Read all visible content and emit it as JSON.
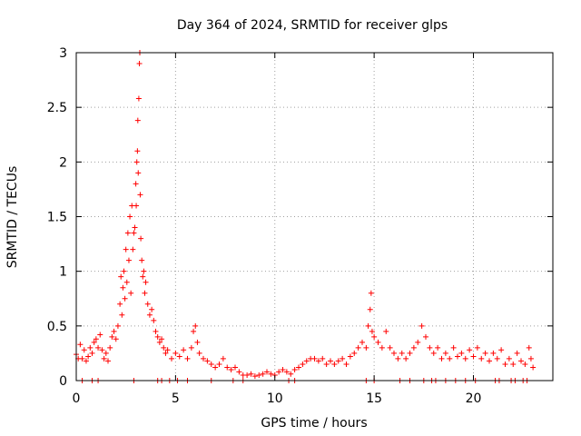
{
  "chart_data": {
    "type": "scatter",
    "title": "Day 364 of 2024, SRMTID for receiver glps",
    "xlabel": "GPS time / hours",
    "ylabel": "SRMTID / TECUs",
    "xlim": [
      0,
      24
    ],
    "ylim": [
      0,
      3
    ],
    "xticks": [
      0,
      5,
      10,
      15,
      20
    ],
    "xtick_labels": [
      "0",
      "5",
      "10",
      "15",
      "20"
    ],
    "yticks": [
      0,
      0.5,
      1,
      1.5,
      2,
      2.5,
      3
    ],
    "ytick_labels": [
      "0",
      "0.5",
      "1",
      "1.5",
      "2",
      "2.5",
      "3"
    ],
    "grid": true,
    "marker": "+",
    "series": [
      {
        "name": "SRMTID",
        "color": "#ff0000",
        "points": [
          [
            0.0,
            0.24
          ],
          [
            0.1,
            0.2
          ],
          [
            0.2,
            0.33
          ],
          [
            0.3,
            0.2
          ],
          [
            0.4,
            0.28
          ],
          [
            0.5,
            0.18
          ],
          [
            0.6,
            0.22
          ],
          [
            0.7,
            0.3
          ],
          [
            0.8,
            0.25
          ],
          [
            0.9,
            0.35
          ],
          [
            1.0,
            0.38
          ],
          [
            1.1,
            0.3
          ],
          [
            1.2,
            0.42
          ],
          [
            1.3,
            0.28
          ],
          [
            1.4,
            0.2
          ],
          [
            1.5,
            0.25
          ],
          [
            1.6,
            0.18
          ],
          [
            1.7,
            0.3
          ],
          [
            1.8,
            0.4
          ],
          [
            1.9,
            0.45
          ],
          [
            2.0,
            0.38
          ],
          [
            2.1,
            0.5
          ],
          [
            2.2,
            0.7
          ],
          [
            2.25,
            0.95
          ],
          [
            2.3,
            0.6
          ],
          [
            2.35,
            0.85
          ],
          [
            2.4,
            1.0
          ],
          [
            2.45,
            0.75
          ],
          [
            2.5,
            1.2
          ],
          [
            2.55,
            0.9
          ],
          [
            2.6,
            1.35
          ],
          [
            2.65,
            1.1
          ],
          [
            2.7,
            1.5
          ],
          [
            2.75,
            0.8
          ],
          [
            2.8,
            1.6
          ],
          [
            2.85,
            1.2
          ],
          [
            2.9,
            1.35
          ],
          [
            2.95,
            1.4
          ],
          [
            3.0,
            1.8
          ],
          [
            3.02,
            1.6
          ],
          [
            3.05,
            2.0
          ],
          [
            3.08,
            2.1
          ],
          [
            3.1,
            2.38
          ],
          [
            3.12,
            1.9
          ],
          [
            3.15,
            2.58
          ],
          [
            3.18,
            2.9
          ],
          [
            3.2,
            3.0
          ],
          [
            3.22,
            1.7
          ],
          [
            3.25,
            1.3
          ],
          [
            3.3,
            1.1
          ],
          [
            3.35,
            0.95
          ],
          [
            3.4,
            1.0
          ],
          [
            3.45,
            0.8
          ],
          [
            3.5,
            0.9
          ],
          [
            3.6,
            0.7
          ],
          [
            3.7,
            0.6
          ],
          [
            3.8,
            0.65
          ],
          [
            3.9,
            0.55
          ],
          [
            4.0,
            0.45
          ],
          [
            4.1,
            0.4
          ],
          [
            4.2,
            0.35
          ],
          [
            4.3,
            0.38
          ],
          [
            4.4,
            0.3
          ],
          [
            4.5,
            0.25
          ],
          [
            4.6,
            0.28
          ],
          [
            4.8,
            0.2
          ],
          [
            5.0,
            0.25
          ],
          [
            5.2,
            0.22
          ],
          [
            5.4,
            0.28
          ],
          [
            5.6,
            0.2
          ],
          [
            5.8,
            0.3
          ],
          [
            5.9,
            0.45
          ],
          [
            6.0,
            0.5
          ],
          [
            6.1,
            0.35
          ],
          [
            6.2,
            0.25
          ],
          [
            6.4,
            0.2
          ],
          [
            6.6,
            0.18
          ],
          [
            6.8,
            0.15
          ],
          [
            7.0,
            0.12
          ],
          [
            7.2,
            0.15
          ],
          [
            7.4,
            0.2
          ],
          [
            7.6,
            0.12
          ],
          [
            7.8,
            0.1
          ],
          [
            8.0,
            0.12
          ],
          [
            8.2,
            0.08
          ],
          [
            8.4,
            0.05
          ],
          [
            8.6,
            0.05
          ],
          [
            8.8,
            0.06
          ],
          [
            9.0,
            0.04
          ],
          [
            9.2,
            0.05
          ],
          [
            9.4,
            0.06
          ],
          [
            9.6,
            0.08
          ],
          [
            9.8,
            0.06
          ],
          [
            10.0,
            0.05
          ],
          [
            10.2,
            0.08
          ],
          [
            10.4,
            0.1
          ],
          [
            10.6,
            0.08
          ],
          [
            10.8,
            0.06
          ],
          [
            11.0,
            0.1
          ],
          [
            11.2,
            0.12
          ],
          [
            11.4,
            0.15
          ],
          [
            11.6,
            0.18
          ],
          [
            11.8,
            0.2
          ],
          [
            12.0,
            0.2
          ],
          [
            12.2,
            0.18
          ],
          [
            12.4,
            0.2
          ],
          [
            12.6,
            0.15
          ],
          [
            12.8,
            0.18
          ],
          [
            13.0,
            0.15
          ],
          [
            13.2,
            0.18
          ],
          [
            13.4,
            0.2
          ],
          [
            13.6,
            0.15
          ],
          [
            13.8,
            0.22
          ],
          [
            14.0,
            0.25
          ],
          [
            14.2,
            0.3
          ],
          [
            14.4,
            0.35
          ],
          [
            14.6,
            0.3
          ],
          [
            14.7,
            0.5
          ],
          [
            14.8,
            0.65
          ],
          [
            14.85,
            0.8
          ],
          [
            14.9,
            0.45
          ],
          [
            15.0,
            0.4
          ],
          [
            15.2,
            0.35
          ],
          [
            15.4,
            0.3
          ],
          [
            15.6,
            0.45
          ],
          [
            15.8,
            0.3
          ],
          [
            16.0,
            0.25
          ],
          [
            16.2,
            0.2
          ],
          [
            16.4,
            0.25
          ],
          [
            16.6,
            0.2
          ],
          [
            16.8,
            0.25
          ],
          [
            17.0,
            0.3
          ],
          [
            17.2,
            0.35
          ],
          [
            17.4,
            0.5
          ],
          [
            17.6,
            0.4
          ],
          [
            17.8,
            0.3
          ],
          [
            18.0,
            0.25
          ],
          [
            18.2,
            0.3
          ],
          [
            18.4,
            0.2
          ],
          [
            18.6,
            0.25
          ],
          [
            18.8,
            0.2
          ],
          [
            19.0,
            0.3
          ],
          [
            19.2,
            0.22
          ],
          [
            19.4,
            0.25
          ],
          [
            19.6,
            0.2
          ],
          [
            19.8,
            0.28
          ],
          [
            20.0,
            0.22
          ],
          [
            20.2,
            0.3
          ],
          [
            20.4,
            0.2
          ],
          [
            20.6,
            0.25
          ],
          [
            20.8,
            0.18
          ],
          [
            21.0,
            0.25
          ],
          [
            21.2,
            0.2
          ],
          [
            21.4,
            0.28
          ],
          [
            21.6,
            0.15
          ],
          [
            21.8,
            0.2
          ],
          [
            22.0,
            0.15
          ],
          [
            22.2,
            0.25
          ],
          [
            22.4,
            0.18
          ],
          [
            22.6,
            0.15
          ],
          [
            22.8,
            0.3
          ],
          [
            22.9,
            0.2
          ],
          [
            23.0,
            0.12
          ],
          [
            0.3,
            0.0
          ],
          [
            0.8,
            0.0
          ],
          [
            1.1,
            0.0
          ],
          [
            2.9,
            0.0
          ],
          [
            4.1,
            0.0
          ],
          [
            4.3,
            0.0
          ],
          [
            4.7,
            0.0
          ],
          [
            5.1,
            0.0
          ],
          [
            5.6,
            0.0
          ],
          [
            6.8,
            0.0
          ],
          [
            7.9,
            0.0
          ],
          [
            8.4,
            0.0
          ],
          [
            10.7,
            0.0
          ],
          [
            11.0,
            0.0
          ],
          [
            14.6,
            0.0
          ],
          [
            15.0,
            0.0
          ],
          [
            16.3,
            0.0
          ],
          [
            16.8,
            0.0
          ],
          [
            17.5,
            0.0
          ],
          [
            17.9,
            0.0
          ],
          [
            18.1,
            0.0
          ],
          [
            18.6,
            0.0
          ],
          [
            19.1,
            0.0
          ],
          [
            19.6,
            0.0
          ],
          [
            20.1,
            0.0
          ],
          [
            21.1,
            0.0
          ],
          [
            21.3,
            0.0
          ],
          [
            21.9,
            0.0
          ],
          [
            22.1,
            0.0
          ],
          [
            22.5,
            0.0
          ],
          [
            22.7,
            0.0
          ]
        ]
      }
    ]
  }
}
